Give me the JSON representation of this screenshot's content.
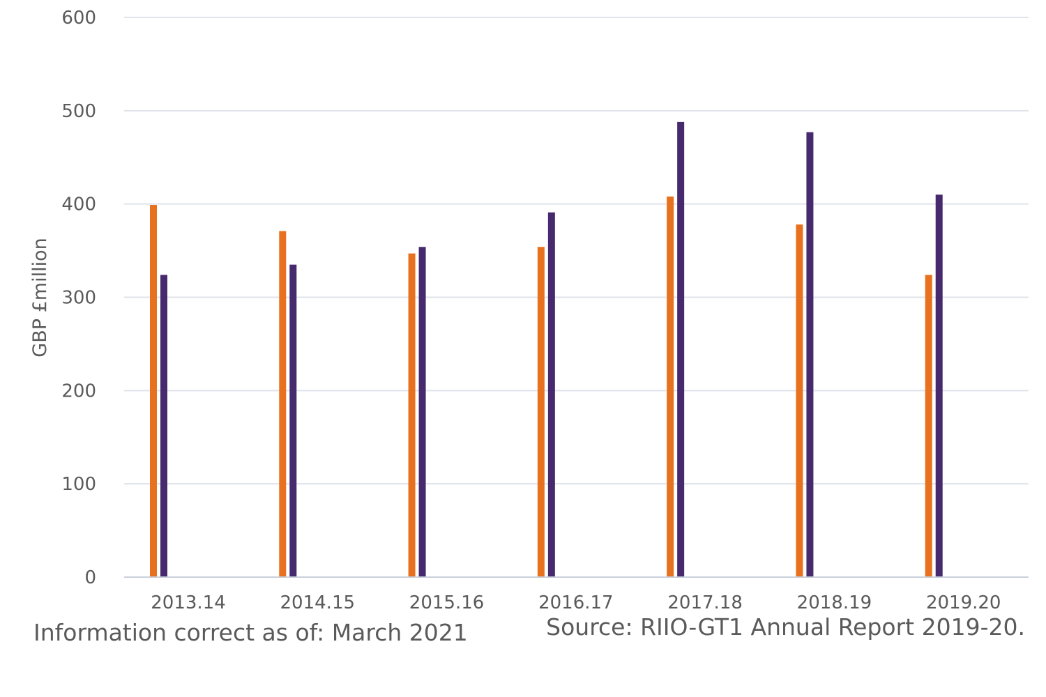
{
  "chart_data": {
    "type": "bar",
    "title": "",
    "xlabel": "",
    "ylabel": "GBP £million",
    "ylim": [
      0,
      600
    ],
    "yticks": [
      0,
      100,
      200,
      300,
      400,
      500,
      600
    ],
    "grid": true,
    "categories": [
      "2013.14",
      "2014.15",
      "2015.16",
      "2016.17",
      "2017.18",
      "2018.19",
      "2019.20"
    ],
    "series": [
      {
        "color": "#e8711f",
        "values": [
          399,
          371,
          347,
          354,
          408,
          378,
          324
        ]
      },
      {
        "color": "#472a6e",
        "values": [
          324,
          335,
          354,
          391,
          488,
          477,
          410
        ]
      }
    ]
  },
  "footer": {
    "info": "Information correct as of: March 2021",
    "source": "Source: RIIO-GT1 Annual Report 2019-20."
  }
}
